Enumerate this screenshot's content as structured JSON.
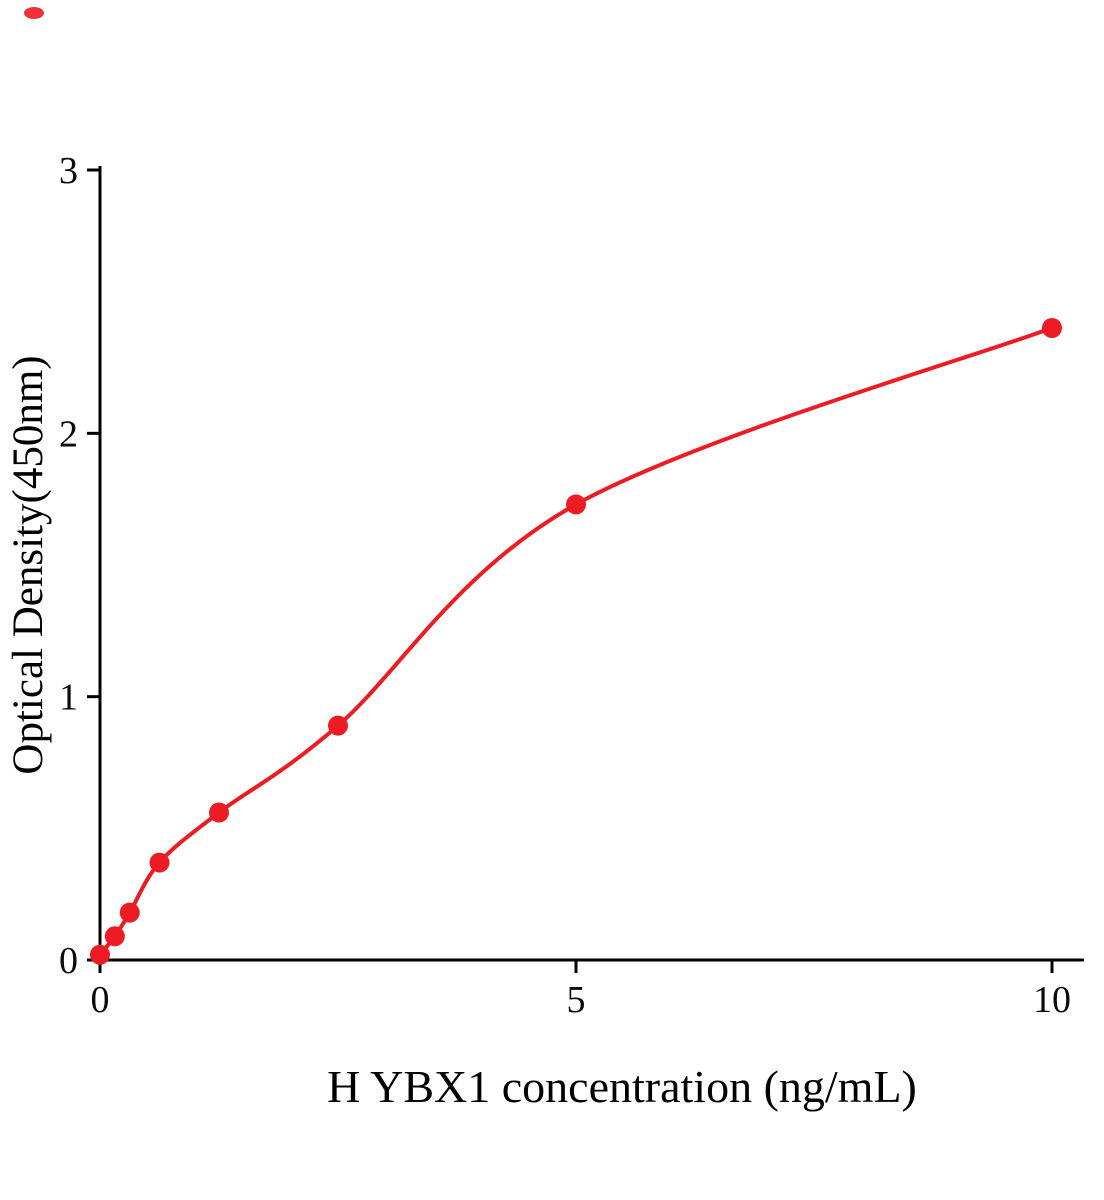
{
  "figure": {
    "kind": "ELISA standard curve plot"
  },
  "chart_data": {
    "type": "scatter",
    "title": "",
    "xlabel": "H YBX1 concentration (ng/mL)",
    "ylabel": "Optical Density(450nm)",
    "x": [
      0,
      0.156,
      0.3125,
      0.625,
      1.25,
      2.5,
      5,
      10
    ],
    "y": [
      0.02,
      0.09,
      0.18,
      0.37,
      0.56,
      0.89,
      1.73,
      2.4
    ],
    "fit": "smooth saturating standard curve through all points",
    "xlim": [
      0,
      10.35
    ],
    "ylim": [
      0,
      3
    ],
    "xticks": [
      0,
      5,
      10
    ],
    "yticks": [
      0,
      1,
      2,
      3
    ],
    "grid": false,
    "legend": null,
    "point_color": "#ed1c24",
    "line_color": "#ed1c24",
    "axis_color": "#000000"
  }
}
